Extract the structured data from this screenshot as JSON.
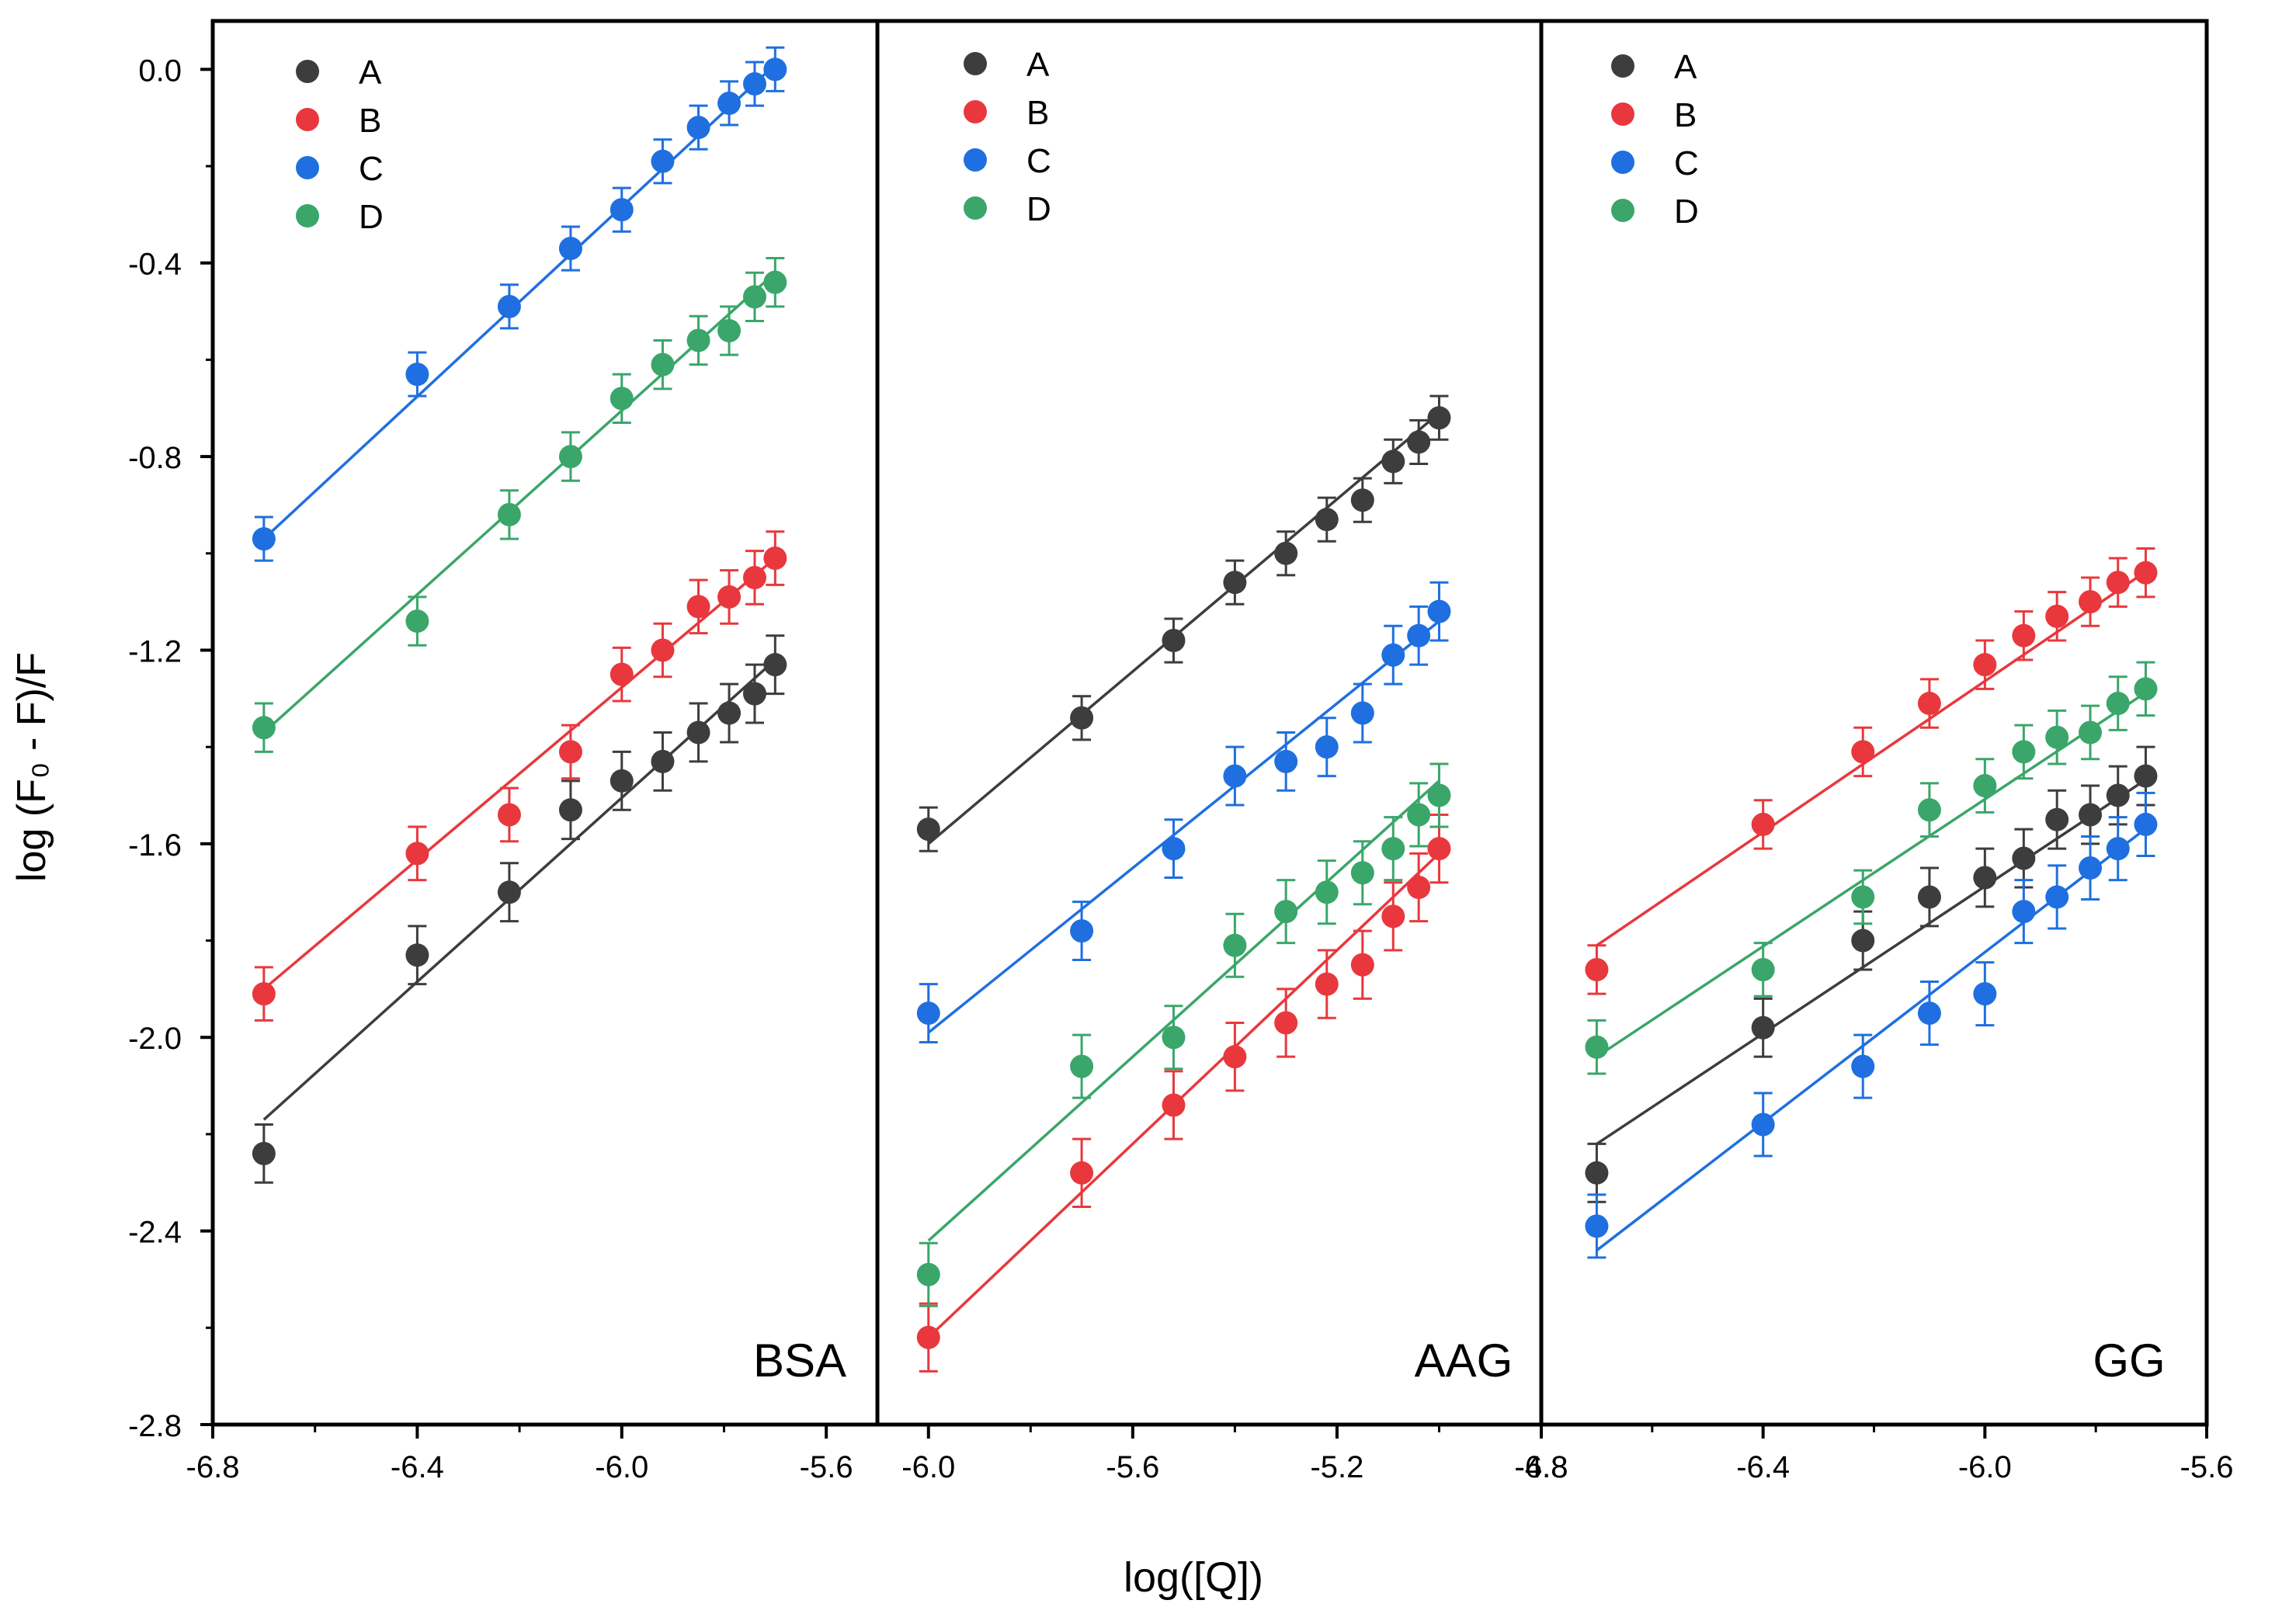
{
  "chart_data": {
    "type": "scatter",
    "xlabel": "log([Q])",
    "ylabel": "log (F₀ - F)/F",
    "ylim": [
      -2.8,
      0.1
    ],
    "y_ticks": [
      0.0,
      -0.4,
      -0.8,
      -1.2,
      -1.6,
      -2.0,
      -2.4,
      -2.8
    ],
    "y_tick_labels": [
      "0.0",
      "-0.4",
      "-0.8",
      "-1.2",
      "-1.6",
      "-2.0",
      "-2.4",
      "-2.8"
    ],
    "series_colors": {
      "A": "#3d3d3d",
      "B": "#e8383d",
      "C": "#1f6fe0",
      "D": "#3aa66a"
    },
    "legend_position": "top-left",
    "panels": [
      {
        "label": "BSA",
        "xlim": [
          -6.8,
          -5.5
        ],
        "x_ticks": [
          -6.8,
          -6.4,
          -6.0,
          -5.6
        ],
        "x_tick_labels": [
          "-6.8",
          "-6.4",
          "-6.0",
          "-5.6"
        ],
        "x": [
          -6.7,
          -6.4,
          -6.22,
          -6.1,
          -6.0,
          -5.92,
          -5.85,
          -5.79,
          -5.74,
          -5.7
        ],
        "series": [
          {
            "name": "A",
            "y": [
              -2.24,
              -1.83,
              -1.7,
              -1.53,
              -1.47,
              -1.43,
              -1.37,
              -1.33,
              -1.29,
              -1.23
            ],
            "err": 0.06,
            "fit": [
              [
                -6.7,
                -2.17
              ],
              [
                -5.7,
                -1.22
              ]
            ]
          },
          {
            "name": "B",
            "y": [
              -1.91,
              -1.62,
              -1.54,
              -1.41,
              -1.25,
              -1.2,
              -1.11,
              -1.09,
              -1.05,
              -1.01
            ],
            "err": 0.055,
            "fit": [
              [
                -6.7,
                -1.9
              ],
              [
                -5.7,
                -1.01
              ]
            ]
          },
          {
            "name": "C",
            "y": [
              -0.97,
              -0.63,
              -0.49,
              -0.37,
              -0.29,
              -0.19,
              -0.12,
              -0.07,
              -0.03,
              0.0
            ],
            "err": 0.045,
            "fit": [
              [
                -6.7,
                -0.97
              ],
              [
                -5.7,
                0.01
              ]
            ]
          },
          {
            "name": "D",
            "y": [
              -1.36,
              -1.14,
              -0.92,
              -0.8,
              -0.68,
              -0.61,
              -0.56,
              -0.54,
              -0.47,
              -0.44
            ],
            "err": 0.05,
            "fit": [
              [
                -6.7,
                -1.37
              ],
              [
                -5.7,
                -0.42
              ]
            ]
          }
        ]
      },
      {
        "label": "AAG",
        "xlim": [
          -6.1,
          -4.8
        ],
        "x_ticks": [
          -6.0,
          -5.6,
          -5.2,
          -4.8
        ],
        "x_tick_labels": [
          "-6.0",
          "-5.6",
          "-5.2",
          "-4.8"
        ],
        "x": [
          -6.0,
          -5.7,
          -5.52,
          -5.4,
          -5.3,
          -5.22,
          -5.15,
          -5.09,
          -5.04,
          -5.0
        ],
        "series": [
          {
            "name": "A",
            "y": [
              -1.57,
              -1.34,
              -1.18,
              -1.06,
              -1.0,
              -0.93,
              -0.89,
              -0.81,
              -0.77,
              -0.72
            ],
            "err": 0.045,
            "fit": [
              [
                -6.0,
                -1.6
              ],
              [
                -5.0,
                -0.71
              ]
            ]
          },
          {
            "name": "B",
            "y": [
              -2.62,
              -2.28,
              -2.14,
              -2.04,
              -1.97,
              -1.89,
              -1.85,
              -1.75,
              -1.69,
              -1.61
            ],
            "err": 0.07,
            "fit": [
              [
                -6.0,
                -2.62
              ],
              [
                -5.0,
                -1.62
              ]
            ]
          },
          {
            "name": "C",
            "y": [
              -1.95,
              -1.78,
              -1.61,
              -1.46,
              -1.43,
              -1.4,
              -1.33,
              -1.21,
              -1.17,
              -1.12
            ],
            "err": 0.06,
            "fit": [
              [
                -6.0,
                -1.99
              ],
              [
                -5.0,
                -1.14
              ]
            ]
          },
          {
            "name": "D",
            "y": [
              -2.49,
              -2.06,
              -2.0,
              -1.81,
              -1.74,
              -1.7,
              -1.66,
              -1.61,
              -1.54,
              -1.5
            ],
            "err": 0.065,
            "fit": [
              [
                -6.0,
                -2.42
              ],
              [
                -5.0,
                -1.47
              ]
            ]
          }
        ]
      },
      {
        "label": "GG",
        "xlim": [
          -6.8,
          -5.6
        ],
        "x_ticks": [
          -6.8,
          -6.4,
          -6.0,
          -5.6
        ],
        "x_tick_labels": [
          "-6.8",
          "-6.4",
          "-6.0",
          "-5.6"
        ],
        "x": [
          -6.7,
          -6.4,
          -6.22,
          -6.1,
          -6.0,
          -5.93,
          -5.87,
          -5.81,
          -5.76,
          -5.71
        ],
        "series": [
          {
            "name": "A",
            "y": [
              -2.28,
              -1.98,
              -1.8,
              -1.71,
              -1.67,
              -1.63,
              -1.55,
              -1.54,
              -1.5,
              -1.46
            ],
            "err": 0.06,
            "fit": [
              [
                -6.7,
                -2.22
              ],
              [
                -5.7,
                -1.46
              ]
            ]
          },
          {
            "name": "B",
            "y": [
              -1.86,
              -1.56,
              -1.41,
              -1.31,
              -1.23,
              -1.17,
              -1.13,
              -1.1,
              -1.06,
              -1.04
            ],
            "err": 0.05,
            "fit": [
              [
                -6.7,
                -1.81
              ],
              [
                -5.7,
                -1.03
              ]
            ]
          },
          {
            "name": "C",
            "y": [
              -2.39,
              -2.18,
              -2.06,
              -1.95,
              -1.91,
              -1.74,
              -1.71,
              -1.65,
              -1.61,
              -1.56
            ],
            "err": 0.065,
            "fit": [
              [
                -6.7,
                -2.44
              ],
              [
                -5.7,
                -1.56
              ]
            ]
          },
          {
            "name": "D",
            "y": [
              -2.02,
              -1.86,
              -1.71,
              -1.53,
              -1.48,
              -1.41,
              -1.38,
              -1.37,
              -1.31,
              -1.28
            ],
            "err": 0.055,
            "fit": [
              [
                -6.7,
                -2.04
              ],
              [
                -5.7,
                -1.28
              ]
            ]
          }
        ]
      }
    ]
  }
}
